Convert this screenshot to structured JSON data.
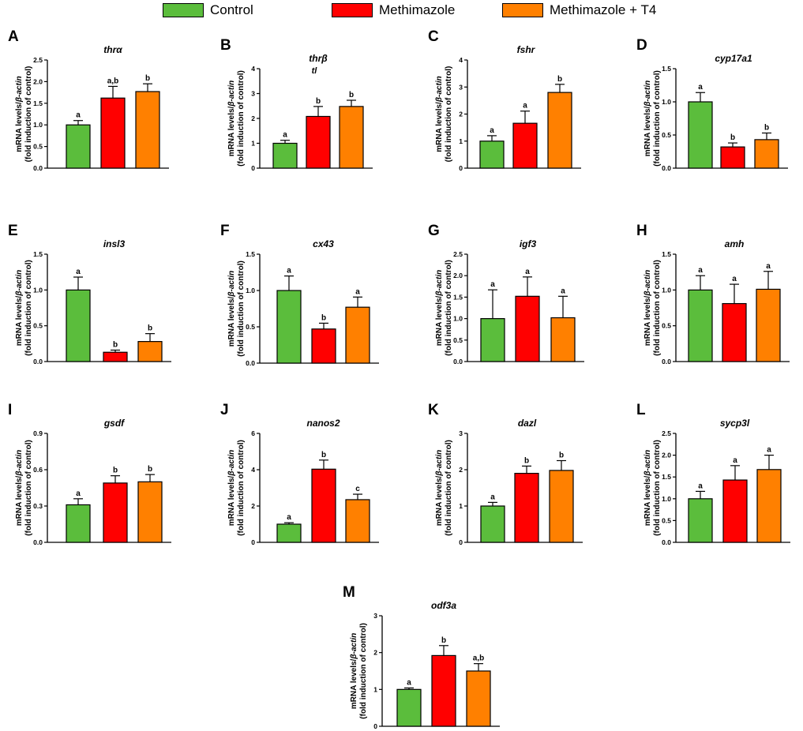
{
  "legend": {
    "items": [
      {
        "label": "Control",
        "color": "#5bbd3c"
      },
      {
        "label": "Methimazole",
        "color": "#ff0000"
      },
      {
        "label": "Methimazole + T4",
        "color": "#ff8000"
      }
    ]
  },
  "y_axis_title": [
    "mRNA levels/",
    "β-actin",
    "(fold induction of control)"
  ],
  "chart_data": [
    {
      "type": "bar",
      "panel": "A",
      "title": "thrα",
      "categories": [
        "Control",
        "Methimazole",
        "Methimazole + T4"
      ],
      "values": [
        1.0,
        1.62,
        1.77
      ],
      "errors": [
        0.1,
        0.27,
        0.18
      ],
      "letters": [
        "a",
        "a,b",
        "b"
      ],
      "ylim": [
        0,
        2.5
      ],
      "ticks": [
        "0.0",
        "0.5",
        "1.0",
        "1.5",
        "2.0",
        "2.5"
      ]
    },
    {
      "type": "bar",
      "panel": "B",
      "title": "thrβ",
      "subtitle": "tl",
      "categories": [
        "Control",
        "Methimazole",
        "Methimazole + T4"
      ],
      "values": [
        1.0,
        2.08,
        2.48
      ],
      "errors": [
        0.12,
        0.4,
        0.25
      ],
      "letters": [
        "a",
        "b",
        "b"
      ],
      "ylim": [
        0,
        4
      ],
      "ticks": [
        "0",
        "1",
        "2",
        "3",
        "4"
      ]
    },
    {
      "type": "bar",
      "panel": "C",
      "title": "fshr",
      "categories": [
        "Control",
        "Methimazole",
        "Methimazole + T4"
      ],
      "values": [
        1.0,
        1.66,
        2.8
      ],
      "errors": [
        0.2,
        0.45,
        0.3
      ],
      "letters": [
        "a",
        "a",
        "b"
      ],
      "ylim": [
        0,
        4
      ],
      "ticks": [
        "0",
        "1",
        "2",
        "3",
        "4"
      ]
    },
    {
      "type": "bar",
      "panel": "D",
      "title": "cyp17a1",
      "categories": [
        "Control",
        "Methimazole",
        "Methimazole + T4"
      ],
      "values": [
        1.0,
        0.32,
        0.43
      ],
      "errors": [
        0.14,
        0.06,
        0.1
      ],
      "letters": [
        "a",
        "b",
        "b"
      ],
      "ylim": [
        0,
        1.5
      ],
      "ticks": [
        "0.0",
        "0.5",
        "1.0",
        "1.5"
      ]
    },
    {
      "type": "bar",
      "panel": "E",
      "title": "insl3",
      "categories": [
        "Control",
        "Methimazole",
        "Methimazole + T4"
      ],
      "values": [
        1.0,
        0.13,
        0.28
      ],
      "errors": [
        0.18,
        0.03,
        0.11
      ],
      "letters": [
        "a",
        "b",
        "b"
      ],
      "ylim": [
        0,
        1.5
      ],
      "ticks": [
        "0.0",
        "0.5",
        "1.0",
        "1.5"
      ]
    },
    {
      "type": "bar",
      "panel": "F",
      "title": "cx43",
      "categories": [
        "Control",
        "Methimazole",
        "Methimazole + T4"
      ],
      "values": [
        1.0,
        0.47,
        0.77
      ],
      "errors": [
        0.2,
        0.08,
        0.14
      ],
      "letters": [
        "a",
        "b",
        "a"
      ],
      "ylim": [
        0,
        1.5
      ],
      "ticks": [
        "0.0",
        "0.5",
        "1.0",
        "1.5"
      ]
    },
    {
      "type": "bar",
      "panel": "G",
      "title": "igf3",
      "categories": [
        "Control",
        "Methimazole",
        "Methimazole + T4"
      ],
      "values": [
        1.0,
        1.52,
        1.02
      ],
      "errors": [
        0.67,
        0.45,
        0.5
      ],
      "letters": [
        "a",
        "a",
        "a"
      ],
      "ylim": [
        0,
        2.5
      ],
      "ticks": [
        "0.0",
        "0.5",
        "1.0",
        "1.5",
        "2.0",
        "2.5"
      ]
    },
    {
      "type": "bar",
      "panel": "H",
      "title": "amh",
      "categories": [
        "Control",
        "Methimazole",
        "Methimazole + T4"
      ],
      "values": [
        1.0,
        0.81,
        1.01
      ],
      "errors": [
        0.2,
        0.27,
        0.25
      ],
      "letters": [
        "a",
        "a",
        "a"
      ],
      "ylim": [
        0,
        1.5
      ],
      "ticks": [
        "0.0",
        "0.5",
        "1.0",
        "1.5"
      ]
    },
    {
      "type": "bar",
      "panel": "I",
      "title": "gsdf",
      "categories": [
        "Control",
        "Methimazole",
        "Methimazole + T4"
      ],
      "values": [
        0.31,
        0.49,
        0.5
      ],
      "errors": [
        0.05,
        0.06,
        0.06
      ],
      "letters": [
        "a",
        "b",
        "b"
      ],
      "ylim": [
        0,
        0.9
      ],
      "ticks": [
        "0.0",
        "0.3",
        "0.6",
        "0.9"
      ]
    },
    {
      "type": "bar",
      "panel": "J",
      "title": "nanos2",
      "categories": [
        "Control",
        "Methimazole",
        "Methimazole + T4"
      ],
      "values": [
        1.0,
        4.03,
        2.35
      ],
      "errors": [
        0.08,
        0.5,
        0.3
      ],
      "letters": [
        "a",
        "b",
        "c"
      ],
      "ylim": [
        0,
        6
      ],
      "ticks": [
        "0",
        "2",
        "4",
        "6"
      ]
    },
    {
      "type": "bar",
      "panel": "K",
      "title": "dazl",
      "categories": [
        "Control",
        "Methimazole",
        "Methimazole + T4"
      ],
      "values": [
        1.0,
        1.9,
        1.98
      ],
      "errors": [
        0.1,
        0.2,
        0.27
      ],
      "letters": [
        "a",
        "b",
        "b"
      ],
      "ylim": [
        0,
        3
      ],
      "ticks": [
        "0",
        "1",
        "2",
        "3"
      ]
    },
    {
      "type": "bar",
      "panel": "L",
      "title": "sycp3l",
      "categories": [
        "Control",
        "Methimazole",
        "Methimazole + T4"
      ],
      "values": [
        1.0,
        1.43,
        1.67
      ],
      "errors": [
        0.17,
        0.33,
        0.33
      ],
      "letters": [
        "a",
        "a",
        "a"
      ],
      "ylim": [
        0,
        2.5
      ],
      "ticks": [
        "0.0",
        "0.5",
        "1.0",
        "1.5",
        "2.0",
        "2.5"
      ]
    },
    {
      "type": "bar",
      "panel": "M",
      "title": "odf3a",
      "categories": [
        "Control",
        "Methimazole",
        "Methimazole + T4"
      ],
      "values": [
        1.0,
        1.92,
        1.5
      ],
      "errors": [
        0.04,
        0.27,
        0.2
      ],
      "letters": [
        "a",
        "b",
        "a,b"
      ],
      "ylim": [
        0,
        3
      ],
      "ticks": [
        "0",
        "1",
        "2",
        "3"
      ]
    }
  ]
}
